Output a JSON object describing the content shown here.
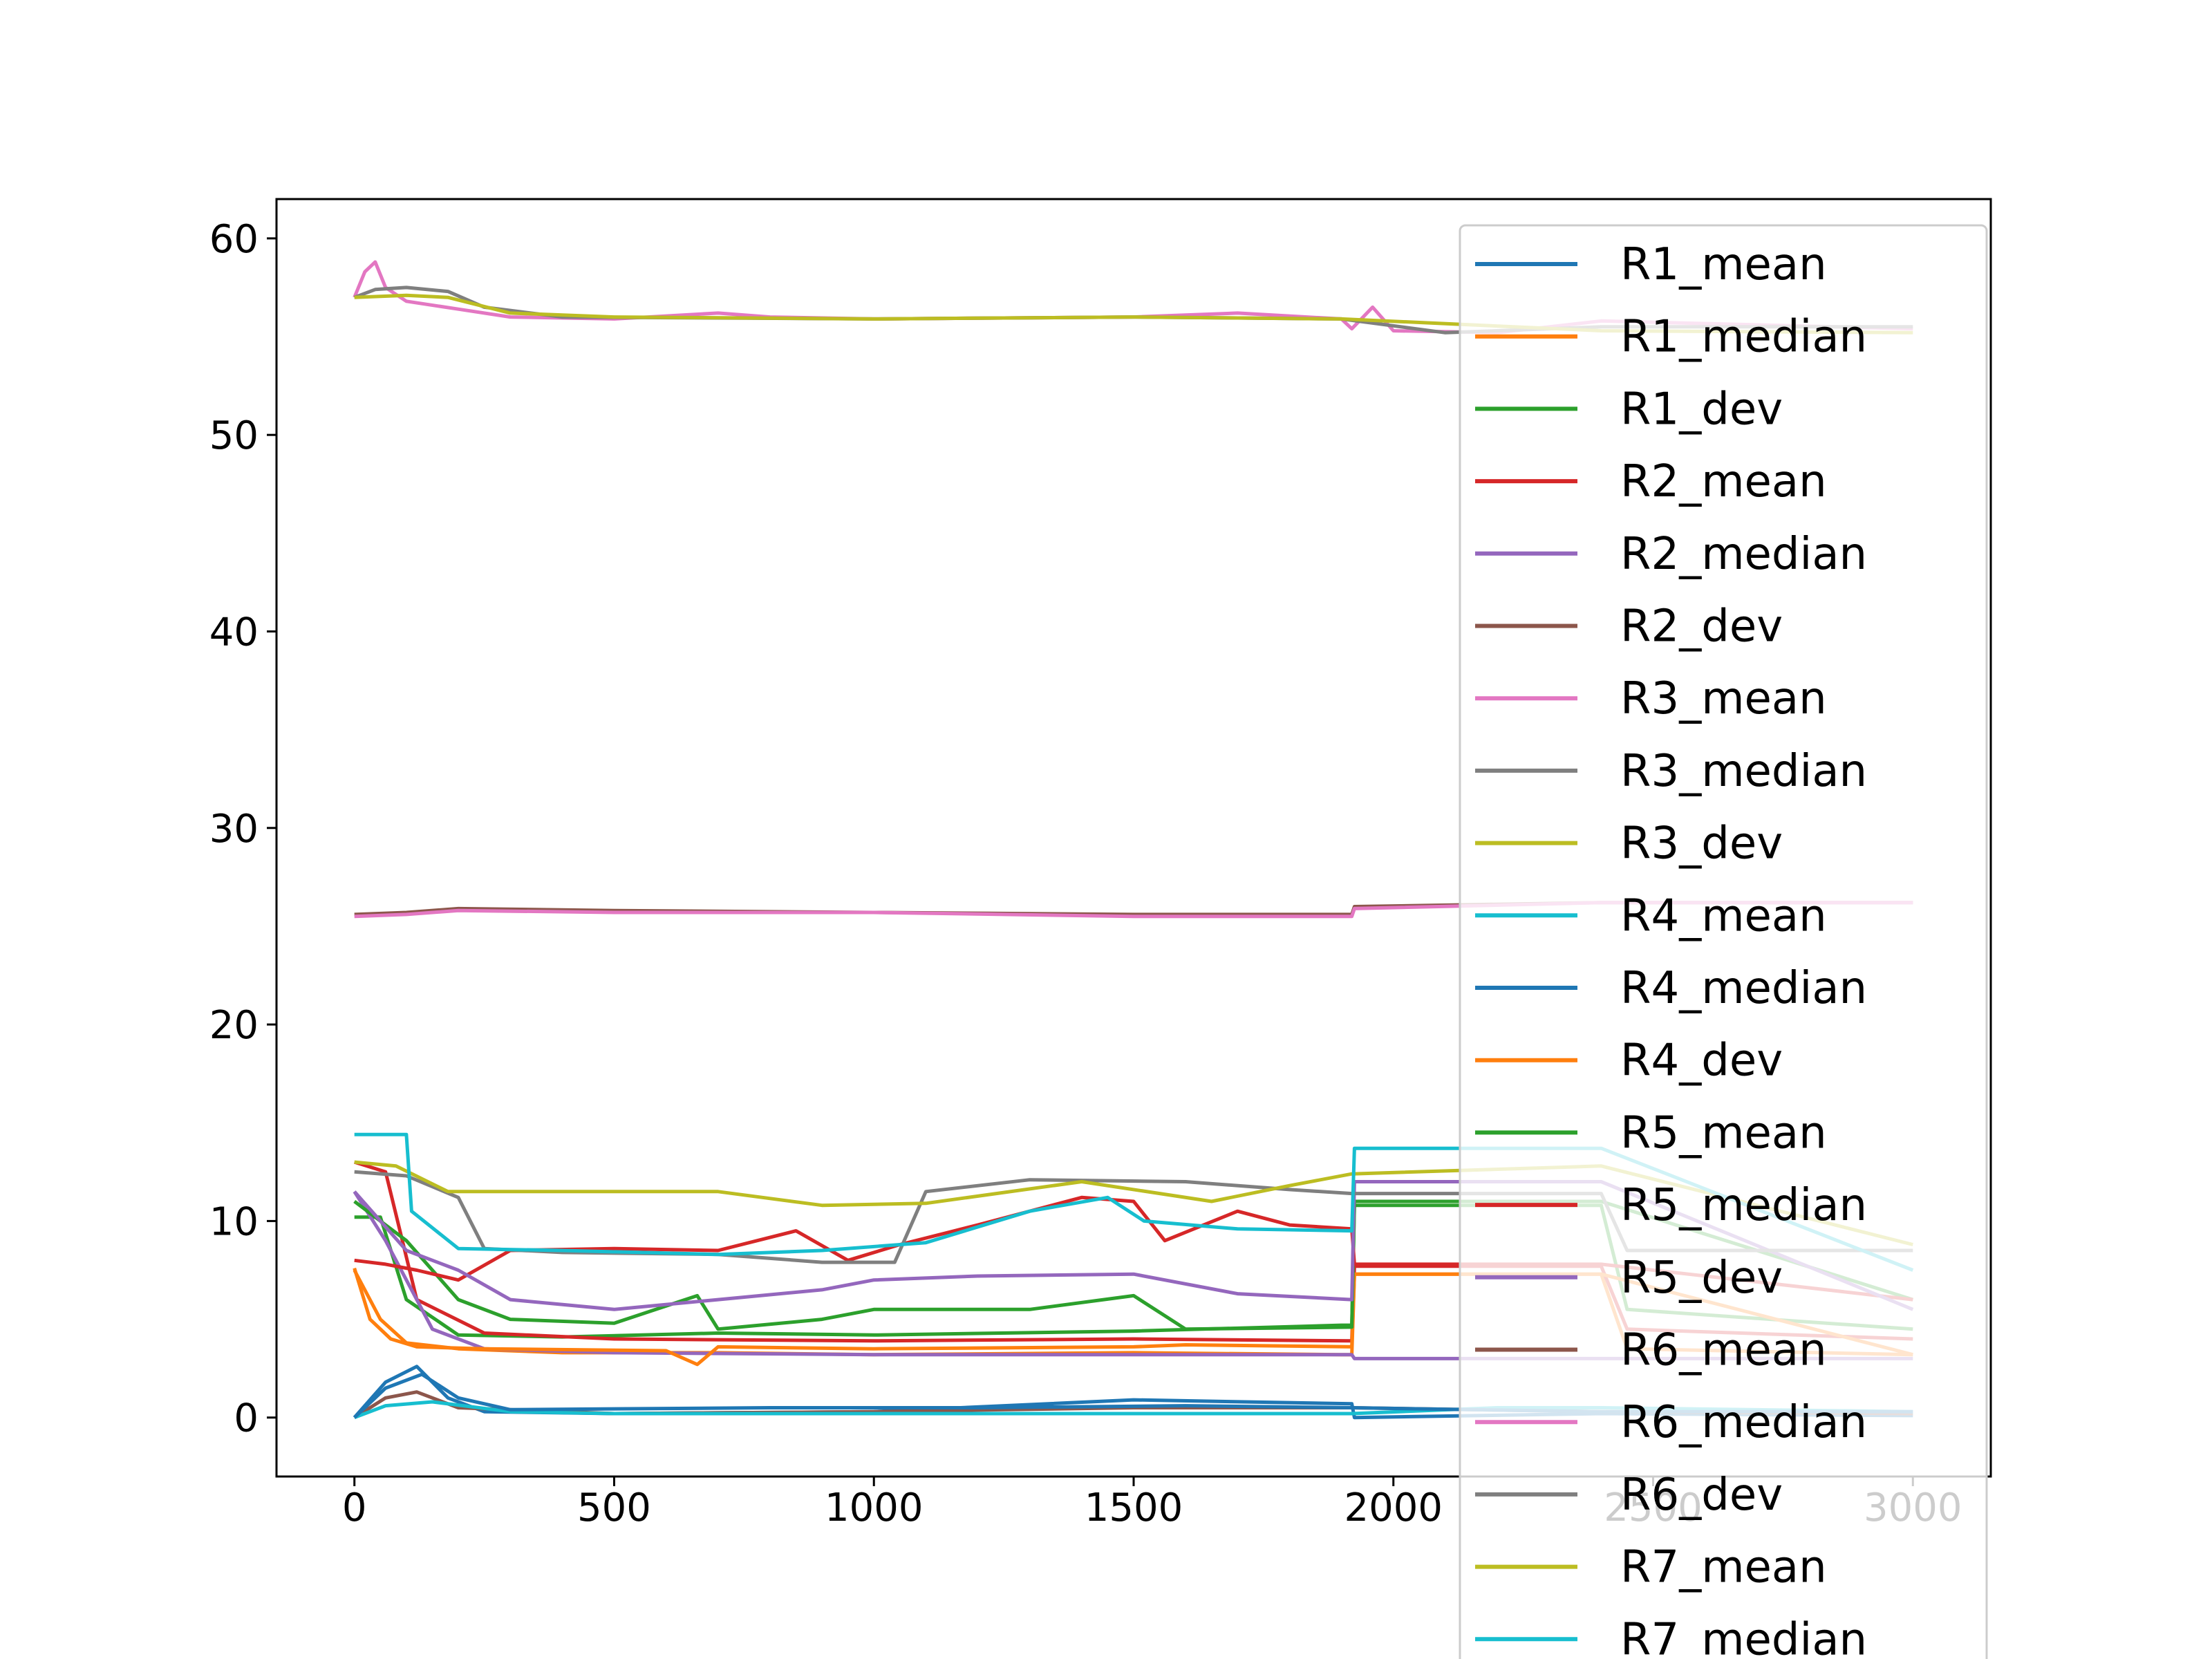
{
  "chart_data": {
    "type": "line",
    "title": "",
    "xlabel": "",
    "ylabel": "",
    "xlim": [
      -150,
      3150
    ],
    "ylim": [
      -3,
      62
    ],
    "x_ticks": [
      0,
      500,
      1000,
      1500,
      2000,
      2500,
      3000
    ],
    "y_ticks": [
      0,
      10,
      20,
      30,
      40,
      50,
      60
    ],
    "grid": false,
    "legend_position": "top-right (overflowing below plot)",
    "series": [
      {
        "name": "R1_mean",
        "color": "#1f77b4",
        "points": [
          [
            0,
            0
          ],
          [
            60,
            1.8
          ],
          [
            120,
            2.6
          ],
          [
            180,
            1.0
          ],
          [
            250,
            0.3
          ],
          [
            500,
            0.2
          ],
          [
            1000,
            0.3
          ],
          [
            1500,
            0.9
          ],
          [
            1920,
            0.7
          ],
          [
            1925,
            0
          ],
          [
            2400,
            0.2
          ],
          [
            3000,
            0.1
          ]
        ]
      },
      {
        "name": "R1_median",
        "color": "#ff7f0e",
        "points": [
          [
            0,
            7.5
          ],
          [
            50,
            5
          ],
          [
            100,
            3.8
          ],
          [
            200,
            3.5
          ],
          [
            400,
            3.3
          ],
          [
            700,
            3.3
          ],
          [
            1000,
            3.2
          ],
          [
            1500,
            3.3
          ],
          [
            1900,
            3.2
          ],
          [
            1920,
            3.2
          ],
          [
            1925,
            7.3
          ],
          [
            2400,
            7.3
          ],
          [
            2450,
            3.5
          ],
          [
            3000,
            3.2
          ]
        ]
      },
      {
        "name": "R1_dev",
        "color": "#2ca02c",
        "points": [
          [
            0,
            10.2
          ],
          [
            50,
            10.2
          ],
          [
            100,
            6
          ],
          [
            200,
            4.2
          ],
          [
            400,
            4.1
          ],
          [
            700,
            4.3
          ],
          [
            1000,
            4.2
          ],
          [
            1500,
            4.4
          ],
          [
            1900,
            4.7
          ],
          [
            1920,
            4.7
          ],
          [
            1925,
            10.8
          ],
          [
            2400,
            10.8
          ],
          [
            2450,
            5.5
          ],
          [
            3000,
            4.5
          ]
        ]
      },
      {
        "name": "R2_mean",
        "color": "#d62728",
        "points": [
          [
            0,
            13.0
          ],
          [
            60,
            12.5
          ],
          [
            120,
            6
          ],
          [
            250,
            4.3
          ],
          [
            500,
            4.0
          ],
          [
            1000,
            3.9
          ],
          [
            1500,
            4.0
          ],
          [
            1920,
            3.9
          ],
          [
            1925,
            7.7
          ],
          [
            2400,
            7.7
          ],
          [
            2450,
            4.5
          ],
          [
            3000,
            4.0
          ]
        ]
      },
      {
        "name": "R2_median",
        "color": "#9467bd",
        "points": [
          [
            0,
            11.5
          ],
          [
            60,
            9
          ],
          [
            150,
            4.5
          ],
          [
            250,
            3.5
          ],
          [
            500,
            3.3
          ],
          [
            1000,
            3.2
          ],
          [
            1500,
            3.2
          ],
          [
            1920,
            3.2
          ],
          [
            1925,
            3.0
          ],
          [
            2400,
            3.0
          ],
          [
            3000,
            3.0
          ]
        ]
      },
      {
        "name": "R2_dev",
        "color": "#8c564b",
        "points": [
          [
            0,
            0
          ],
          [
            60,
            1.0
          ],
          [
            120,
            1.3
          ],
          [
            200,
            0.5
          ],
          [
            500,
            0.2
          ],
          [
            1000,
            0.3
          ],
          [
            1500,
            0.5
          ],
          [
            1920,
            0.5
          ],
          [
            2400,
            0.3
          ],
          [
            3000,
            0.2
          ]
        ]
      },
      {
        "name": "R3_mean",
        "color": "#e377c2",
        "points": [
          [
            0,
            57.0
          ],
          [
            20,
            58.3
          ],
          [
            40,
            58.8
          ],
          [
            60,
            57.5
          ],
          [
            100,
            56.8
          ],
          [
            200,
            56.4
          ],
          [
            300,
            56.0
          ],
          [
            500,
            55.9
          ],
          [
            700,
            56.2
          ],
          [
            800,
            56.0
          ],
          [
            1000,
            55.9
          ],
          [
            1500,
            56.0
          ],
          [
            1700,
            56.2
          ],
          [
            1900,
            55.9
          ],
          [
            1920,
            55.4
          ],
          [
            1960,
            56.5
          ],
          [
            2000,
            55.3
          ],
          [
            2200,
            55.2
          ],
          [
            2400,
            55.8
          ],
          [
            3000,
            55.4
          ]
        ]
      },
      {
        "name": "R3_median",
        "color": "#7f7f7f",
        "points": [
          [
            0,
            57.0
          ],
          [
            40,
            57.4
          ],
          [
            100,
            57.5
          ],
          [
            180,
            57.3
          ],
          [
            250,
            56.5
          ],
          [
            400,
            56.0
          ],
          [
            1000,
            55.9
          ],
          [
            1500,
            56.0
          ],
          [
            1900,
            55.9
          ],
          [
            2100,
            55.2
          ],
          [
            2400,
            55.5
          ],
          [
            3000,
            55.5
          ]
        ]
      },
      {
        "name": "R3_dev",
        "color": "#bcbd22",
        "points": [
          [
            0,
            57.0
          ],
          [
            100,
            57.1
          ],
          [
            180,
            57.0
          ],
          [
            300,
            56.2
          ],
          [
            500,
            56.0
          ],
          [
            1000,
            55.9
          ],
          [
            1500,
            56.0
          ],
          [
            1900,
            55.9
          ],
          [
            2400,
            55.3
          ],
          [
            3000,
            55.2
          ]
        ]
      },
      {
        "name": "R4_mean",
        "color": "#17becf",
        "points": [
          [
            0,
            0
          ],
          [
            60,
            0.6
          ],
          [
            150,
            0.8
          ],
          [
            300,
            0.3
          ],
          [
            500,
            0.2
          ],
          [
            1000,
            0.2
          ],
          [
            1500,
            0.2
          ],
          [
            1920,
            0.2
          ],
          [
            2200,
            0.5
          ],
          [
            2400,
            0.5
          ],
          [
            3000,
            0.3
          ]
        ]
      },
      {
        "name": "R4_median",
        "color": "#1f77b4",
        "points": [
          [
            0,
            0
          ],
          [
            60,
            1.5
          ],
          [
            130,
            2.2
          ],
          [
            200,
            1.0
          ],
          [
            300,
            0.4
          ],
          [
            800,
            0.5
          ],
          [
            1200,
            0.5
          ],
          [
            1600,
            0.6
          ],
          [
            1920,
            0.5
          ],
          [
            2400,
            0.3
          ],
          [
            3000,
            0.3
          ]
        ]
      },
      {
        "name": "R4_dev",
        "color": "#ff7f0e",
        "points": [
          [
            0,
            7.6
          ],
          [
            30,
            5
          ],
          [
            70,
            4.0
          ],
          [
            120,
            3.6
          ],
          [
            250,
            3.5
          ],
          [
            600,
            3.4
          ],
          [
            660,
            2.7
          ],
          [
            700,
            3.6
          ],
          [
            1000,
            3.5
          ],
          [
            1500,
            3.6
          ],
          [
            1600,
            3.7
          ],
          [
            1920,
            3.6
          ],
          [
            1925,
            7.3
          ],
          [
            2400,
            7.3
          ],
          [
            3000,
            3.2
          ]
        ]
      },
      {
        "name": "R5_mean",
        "color": "#2ca02c",
        "points": [
          [
            0,
            11.0
          ],
          [
            100,
            9
          ],
          [
            200,
            6
          ],
          [
            300,
            5.0
          ],
          [
            500,
            4.8
          ],
          [
            660,
            6.2
          ],
          [
            700,
            4.5
          ],
          [
            900,
            5.0
          ],
          [
            1000,
            5.5
          ],
          [
            1300,
            5.5
          ],
          [
            1500,
            6.2
          ],
          [
            1600,
            4.5
          ],
          [
            1920,
            4.6
          ],
          [
            1925,
            11.0
          ],
          [
            2400,
            11.0
          ],
          [
            3000,
            6.0
          ]
        ]
      },
      {
        "name": "R5_median",
        "color": "#d62728",
        "points": [
          [
            0,
            8.0
          ],
          [
            60,
            7.8
          ],
          [
            120,
            7.5
          ],
          [
            200,
            7.0
          ],
          [
            300,
            8.5
          ],
          [
            500,
            8.6
          ],
          [
            700,
            8.5
          ],
          [
            850,
            9.5
          ],
          [
            950,
            8.0
          ],
          [
            1050,
            8.8
          ],
          [
            1200,
            9.8
          ],
          [
            1400,
            11.2
          ],
          [
            1500,
            11.0
          ],
          [
            1560,
            9.0
          ],
          [
            1700,
            10.5
          ],
          [
            1800,
            9.8
          ],
          [
            1920,
            9.6
          ],
          [
            1925,
            7.8
          ],
          [
            2400,
            7.8
          ],
          [
            3000,
            6.0
          ]
        ]
      },
      {
        "name": "R5_dev",
        "color": "#9467bd",
        "points": [
          [
            0,
            11.5
          ],
          [
            100,
            8.5
          ],
          [
            200,
            7.5
          ],
          [
            300,
            6.0
          ],
          [
            500,
            5.5
          ],
          [
            700,
            6.0
          ],
          [
            900,
            6.5
          ],
          [
            1000,
            7.0
          ],
          [
            1200,
            7.2
          ],
          [
            1500,
            7.3
          ],
          [
            1700,
            6.3
          ],
          [
            1920,
            6.0
          ],
          [
            1925,
            12.0
          ],
          [
            2400,
            12.0
          ],
          [
            3000,
            5.5
          ]
        ]
      },
      {
        "name": "R6_mean",
        "color": "#8c564b",
        "points": [
          [
            0,
            25.6
          ],
          [
            100,
            25.7
          ],
          [
            200,
            25.9
          ],
          [
            500,
            25.8
          ],
          [
            1000,
            25.7
          ],
          [
            1500,
            25.6
          ],
          [
            1920,
            25.6
          ],
          [
            1925,
            26.0
          ],
          [
            2400,
            26.2
          ],
          [
            3000,
            26.2
          ]
        ]
      },
      {
        "name": "R6_median",
        "color": "#e377c2",
        "points": [
          [
            0,
            25.5
          ],
          [
            100,
            25.6
          ],
          [
            200,
            25.8
          ],
          [
            500,
            25.7
          ],
          [
            1000,
            25.7
          ],
          [
            1500,
            25.5
          ],
          [
            1920,
            25.5
          ],
          [
            1925,
            25.9
          ],
          [
            2400,
            26.2
          ],
          [
            3000,
            26.2
          ]
        ]
      },
      {
        "name": "R6_dev",
        "color": "#7f7f7f",
        "points": [
          [
            0,
            12.5
          ],
          [
            100,
            12.3
          ],
          [
            200,
            11.2
          ],
          [
            250,
            8.6
          ],
          [
            400,
            8.4
          ],
          [
            700,
            8.3
          ],
          [
            900,
            7.9
          ],
          [
            1040,
            7.9
          ],
          [
            1100,
            11.5
          ],
          [
            1300,
            12.1
          ],
          [
            1600,
            12.0
          ],
          [
            1800,
            11.6
          ],
          [
            1920,
            11.4
          ],
          [
            2400,
            11.4
          ],
          [
            2450,
            8.5
          ],
          [
            3000,
            8.5
          ]
        ]
      },
      {
        "name": "R7_mean",
        "color": "#bcbd22",
        "points": [
          [
            0,
            13.0
          ],
          [
            80,
            12.8
          ],
          [
            180,
            11.5
          ],
          [
            400,
            11.5
          ],
          [
            700,
            11.5
          ],
          [
            900,
            10.8
          ],
          [
            1100,
            10.9
          ],
          [
            1400,
            12.0
          ],
          [
            1650,
            11.0
          ],
          [
            1800,
            11.8
          ],
          [
            1920,
            12.4
          ],
          [
            2400,
            12.8
          ],
          [
            3000,
            8.8
          ]
        ]
      },
      {
        "name": "R7_median",
        "color": "#17becf",
        "points": [
          [
            0,
            14.4
          ],
          [
            100,
            14.4
          ],
          [
            110,
            10.5
          ],
          [
            200,
            8.6
          ],
          [
            400,
            8.5
          ],
          [
            700,
            8.3
          ],
          [
            900,
            8.5
          ],
          [
            1100,
            8.9
          ],
          [
            1300,
            10.5
          ],
          [
            1450,
            11.2
          ],
          [
            1520,
            10.0
          ],
          [
            1700,
            9.6
          ],
          [
            1920,
            9.5
          ],
          [
            1925,
            13.7
          ],
          [
            2400,
            13.7
          ],
          [
            3000,
            7.5
          ]
        ]
      }
    ]
  }
}
